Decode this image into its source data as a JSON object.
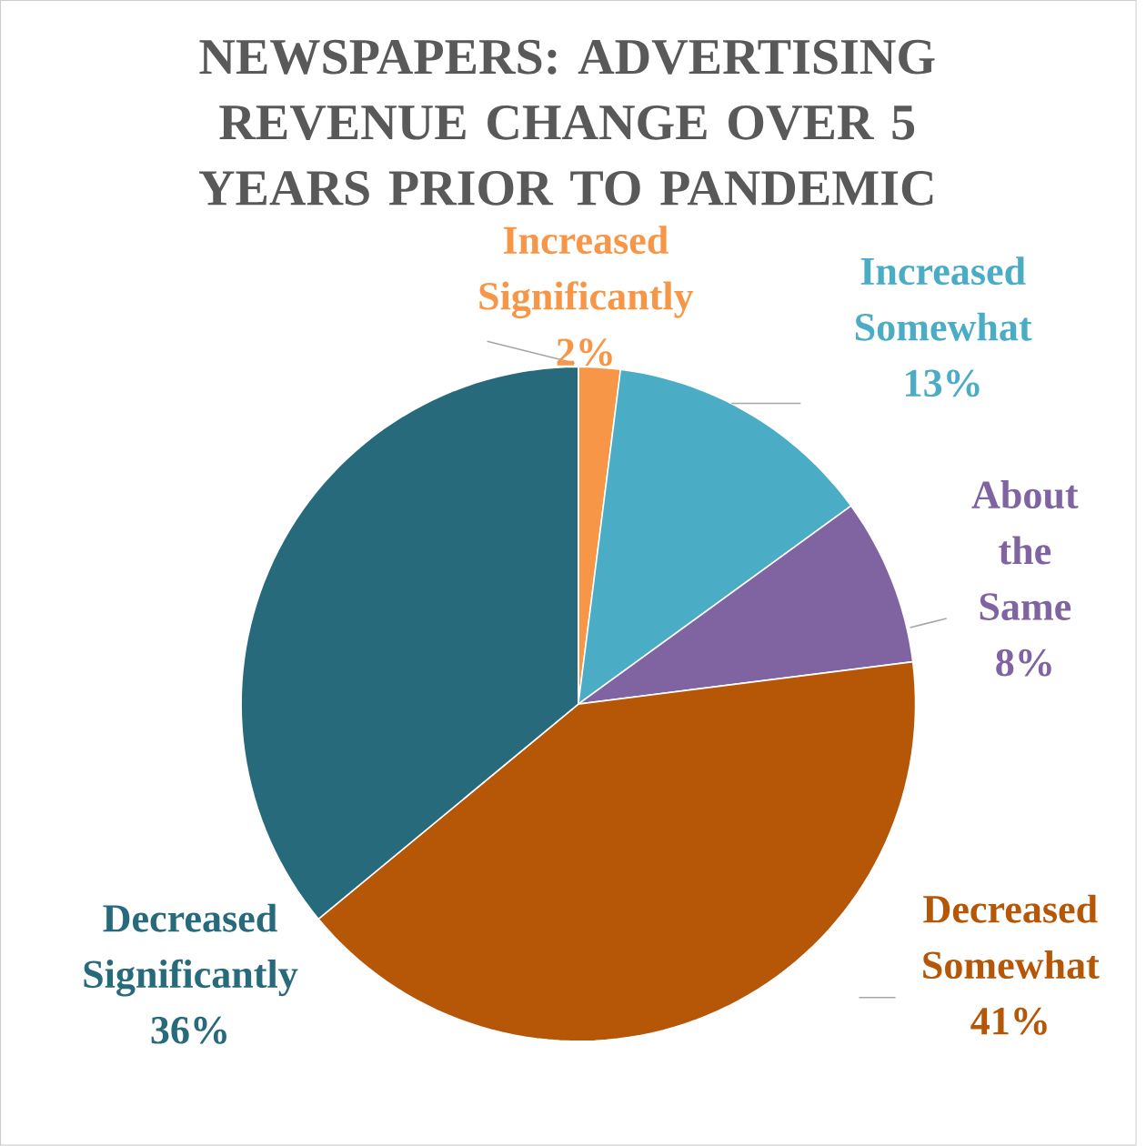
{
  "chart_data": {
    "type": "pie",
    "title": "NEWSPAPERS: ADVERTISING REVENUE CHANGE OVER 5 YEARS PRIOR TO PANDEMIC",
    "categories": [
      "Increased Significantly",
      "Increased Somewhat",
      "About the Same",
      "Decreased Somewhat",
      "Decreased Significantly"
    ],
    "values": [
      2,
      13,
      8,
      41,
      36
    ],
    "value_labels": [
      "2%",
      "13%",
      "8%",
      "41%",
      "36%"
    ],
    "colors": [
      "#f79646",
      "#4bacc6",
      "#8064a2",
      "#b65708",
      "#276a7b"
    ]
  }
}
